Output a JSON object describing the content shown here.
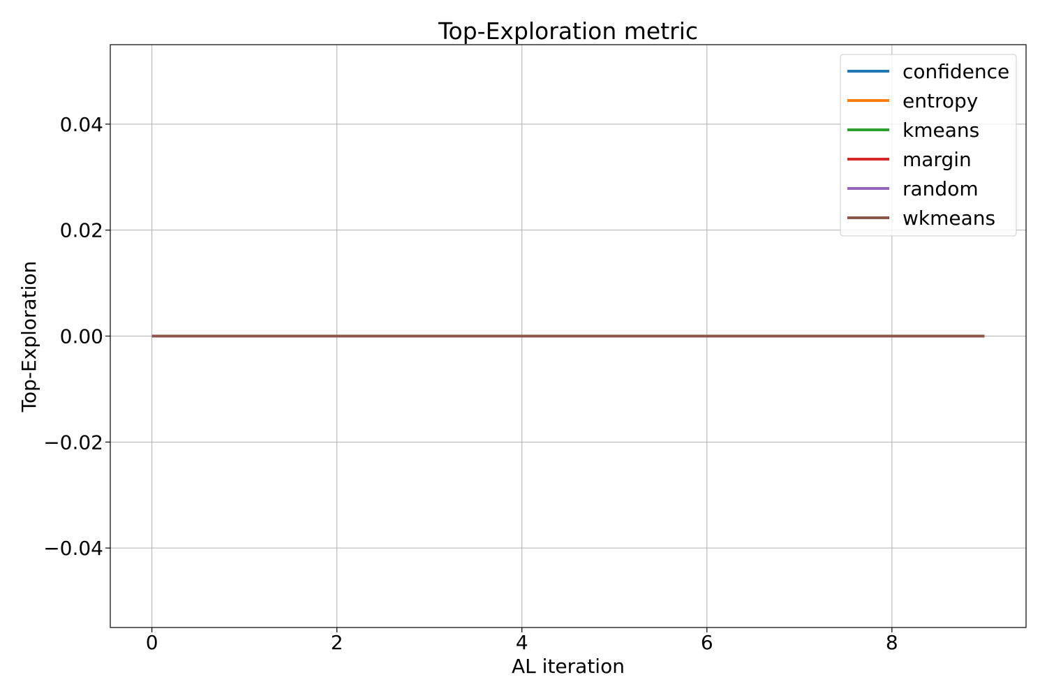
{
  "chart_data": {
    "type": "line",
    "title": "Top-Exploration metric",
    "xlabel": "AL iteration",
    "ylabel": "Top-Exploration",
    "xlim": [
      -0.45,
      9.45
    ],
    "ylim": [
      -0.055,
      0.055
    ],
    "x_ticks": [
      0,
      2,
      4,
      6,
      8
    ],
    "y_ticks": [
      -0.04,
      -0.02,
      0.0,
      0.02,
      0.04
    ],
    "x_tick_labels": [
      "0",
      "2",
      "4",
      "6",
      "8"
    ],
    "y_tick_labels": [
      "−0.04",
      "−0.02",
      "0.00",
      "0.02",
      "0.04"
    ],
    "grid": true,
    "legend_position": "top-right",
    "x": [
      0,
      1,
      2,
      3,
      4,
      5,
      6,
      7,
      8,
      9
    ],
    "series": [
      {
        "name": "confidence",
        "color": "#1f77b4",
        "values": [
          0,
          0,
          0,
          0,
          0,
          0,
          0,
          0,
          0,
          0
        ]
      },
      {
        "name": "entropy",
        "color": "#ff7f0e",
        "values": [
          0,
          0,
          0,
          0,
          0,
          0,
          0,
          0,
          0,
          0
        ]
      },
      {
        "name": "kmeans",
        "color": "#2ca02c",
        "values": [
          0,
          0,
          0,
          0,
          0,
          0,
          0,
          0,
          0,
          0
        ]
      },
      {
        "name": "margin",
        "color": "#d62728",
        "values": [
          0,
          0,
          0,
          0,
          0,
          0,
          0,
          0,
          0,
          0
        ]
      },
      {
        "name": "random",
        "color": "#9467bd",
        "values": [
          0,
          0,
          0,
          0,
          0,
          0,
          0,
          0,
          0,
          0
        ]
      },
      {
        "name": "wkmeans",
        "color": "#8c564b",
        "values": [
          0,
          0,
          0,
          0,
          0,
          0,
          0,
          0,
          0,
          0
        ]
      }
    ]
  }
}
